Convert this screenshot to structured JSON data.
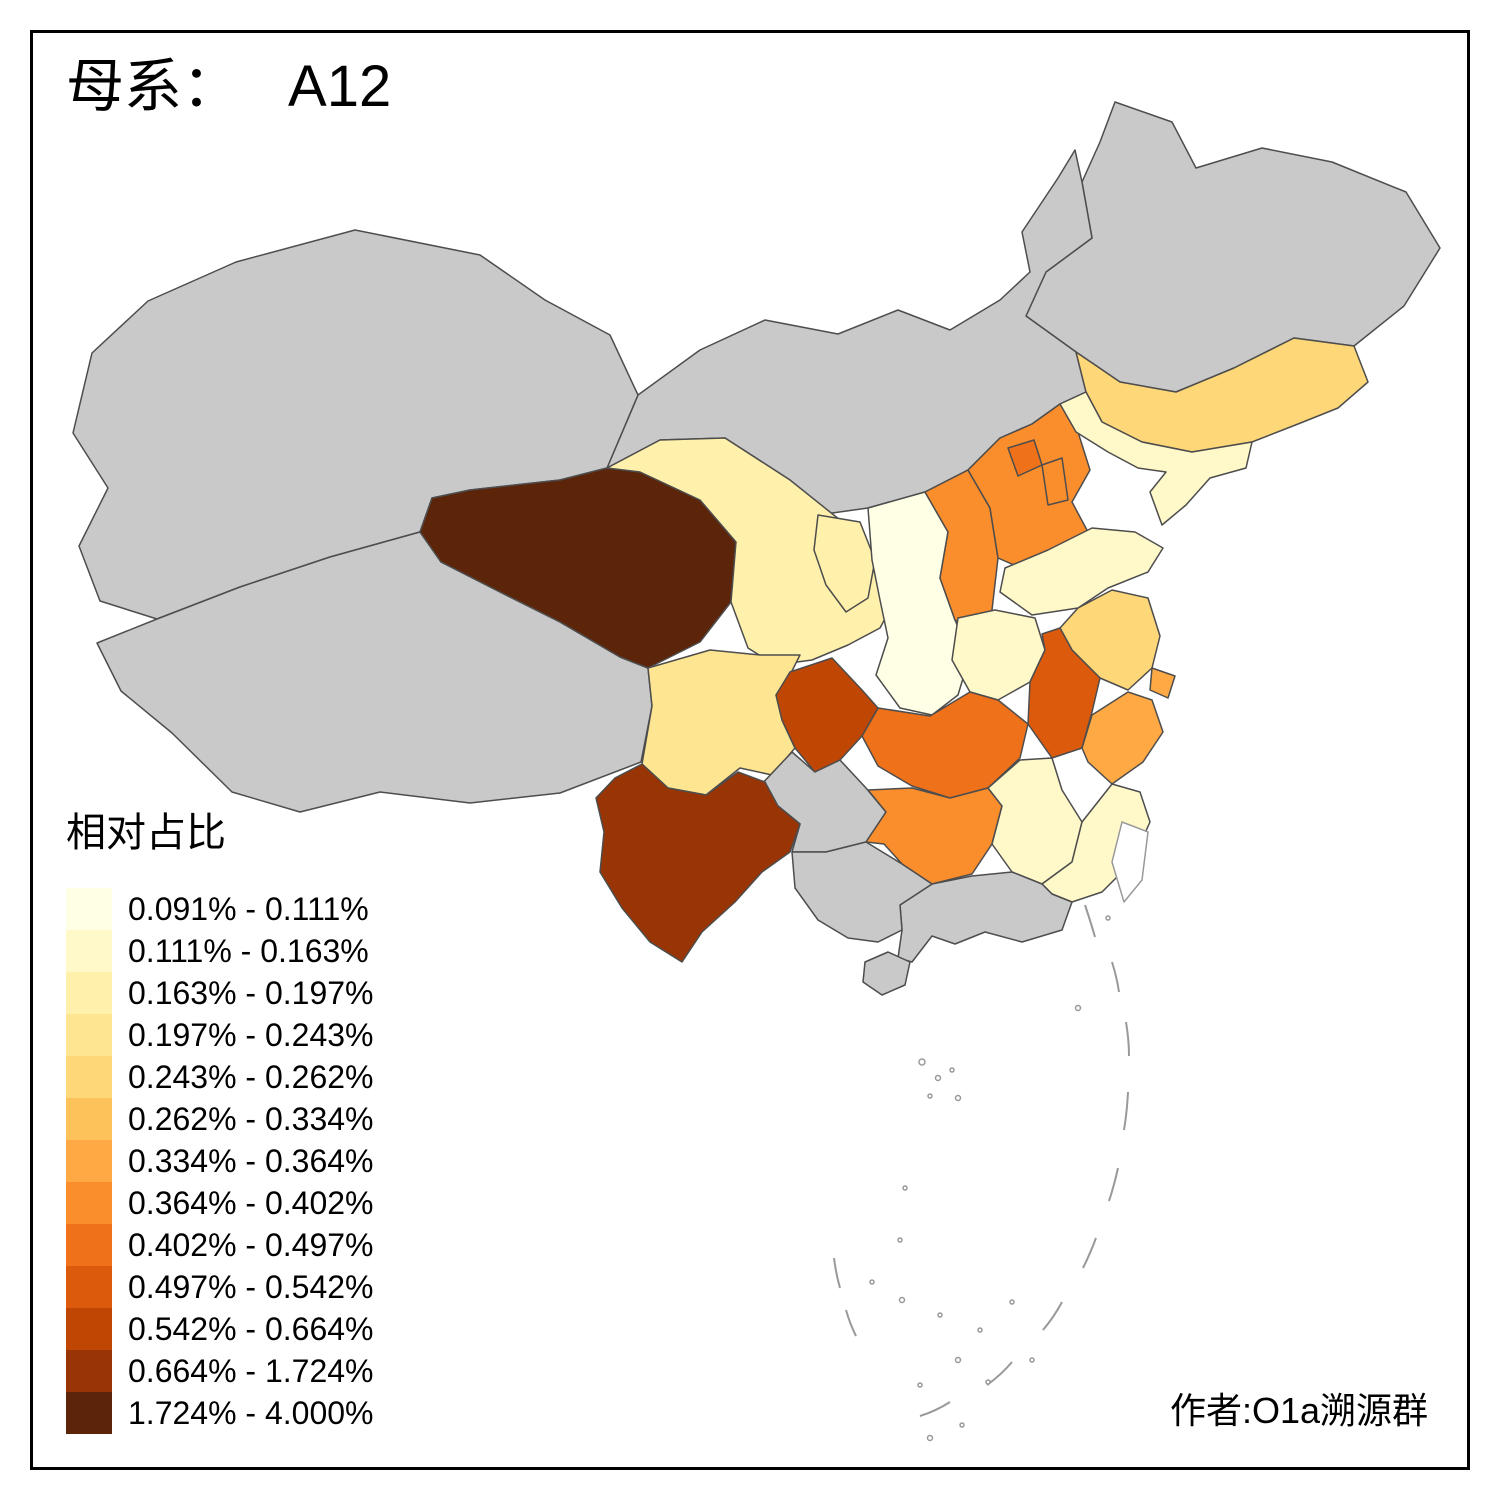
{
  "title": {
    "prefix": "母系：",
    "value": "A12"
  },
  "legend": {
    "title": "相对占比",
    "items": [
      {
        "label": "0.091% - 0.111%",
        "color": "#FFFFE5"
      },
      {
        "label": "0.111% - 0.163%",
        "color": "#FFF8C8"
      },
      {
        "label": "0.163% - 0.197%",
        "color": "#FFF1AC"
      },
      {
        "label": "0.197% - 0.243%",
        "color": "#FEE591"
      },
      {
        "label": "0.243% - 0.262%",
        "color": "#FED778"
      },
      {
        "label": "0.262% - 0.334%",
        "color": "#FEC25B"
      },
      {
        "label": "0.334% - 0.364%",
        "color": "#FEA943"
      },
      {
        "label": "0.364% - 0.402%",
        "color": "#FB8E2C"
      },
      {
        "label": "0.402% - 0.497%",
        "color": "#EF711A"
      },
      {
        "label": "0.497% - 0.542%",
        "color": "#DC5A0C"
      },
      {
        "label": "0.542% - 0.664%",
        "color": "#C04703"
      },
      {
        "label": "0.664% - 1.724%",
        "color": "#993404"
      },
      {
        "label": "1.724% - 4.000%",
        "color": "#5C2408"
      }
    ]
  },
  "author": "作者:O1a溯源群",
  "map": {
    "no_data_color": "#C9C9C9",
    "outline_only_color": "#FFFFFF",
    "border_color": "#4D4D4D",
    "provinces": [
      {
        "id": "heilongjiang",
        "class": 0
      },
      {
        "id": "inner-mongolia",
        "class": 0
      },
      {
        "id": "xinjiang",
        "class": 0
      },
      {
        "id": "tibet",
        "class": 0
      },
      {
        "id": "qinghai",
        "class": 13
      },
      {
        "id": "gansu",
        "class": 3
      },
      {
        "id": "ningxia",
        "class": 3
      },
      {
        "id": "shaanxi",
        "class": 1
      },
      {
        "id": "shanxi",
        "class": 8
      },
      {
        "id": "hebei",
        "class": 8
      },
      {
        "id": "beijing",
        "class": 9
      },
      {
        "id": "tianjin",
        "class": 8
      },
      {
        "id": "shandong",
        "class": 2
      },
      {
        "id": "henan",
        "class": 2
      },
      {
        "id": "jiangsu",
        "class": 5
      },
      {
        "id": "anhui",
        "class": 10
      },
      {
        "id": "hubei",
        "class": 9
      },
      {
        "id": "sichuan",
        "class": 4
      },
      {
        "id": "chongqing",
        "class": 11
      },
      {
        "id": "guizhou",
        "class": 0
      },
      {
        "id": "yunnan",
        "class": 12
      },
      {
        "id": "hunan",
        "class": 8
      },
      {
        "id": "jiangxi",
        "class": 2
      },
      {
        "id": "zhejiang",
        "class": 7
      },
      {
        "id": "shanghai",
        "class": 7
      },
      {
        "id": "fujian",
        "class": 2
      },
      {
        "id": "guangdong",
        "class": 0
      },
      {
        "id": "guangxi",
        "class": 0
      },
      {
        "id": "hainan",
        "class": 0
      },
      {
        "id": "jilin",
        "class": 5
      },
      {
        "id": "liaoning",
        "class": 2
      },
      {
        "id": "taiwan",
        "class": -1
      }
    ]
  }
}
